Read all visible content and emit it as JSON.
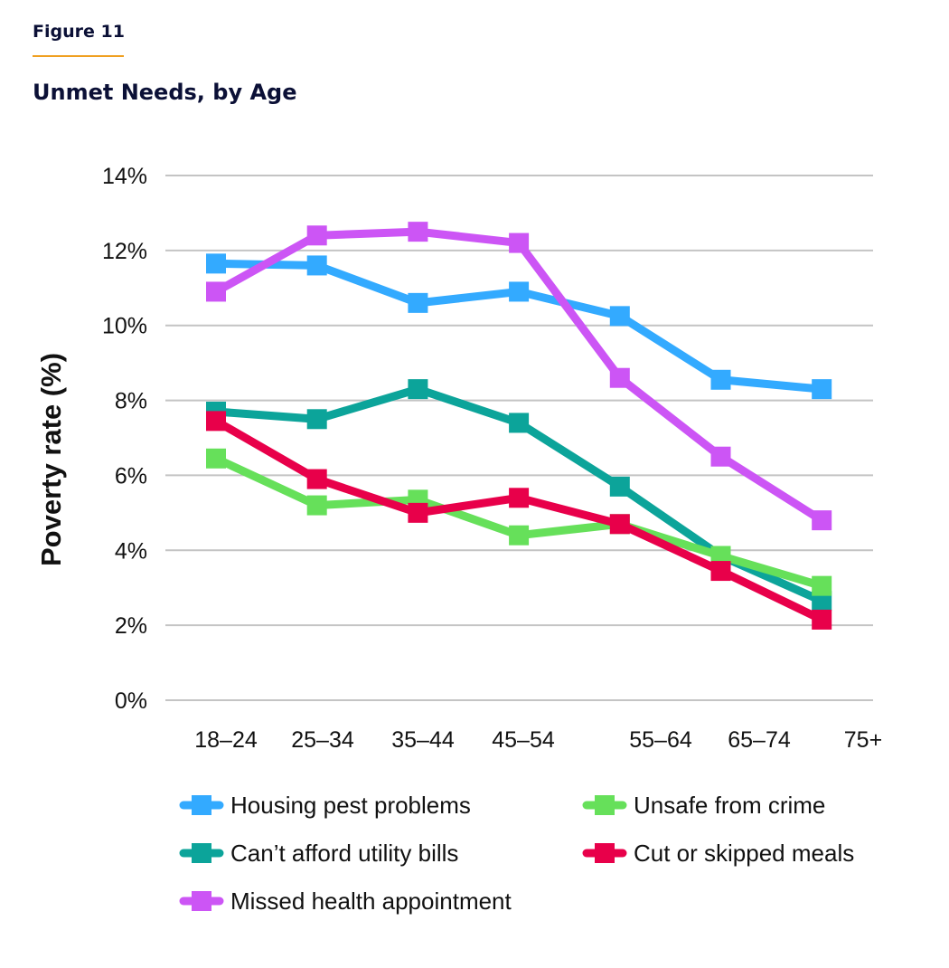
{
  "header": {
    "figure_label": "Figure 11",
    "title": "Unmet Needs, by Age",
    "rule_color": "#f0a020"
  },
  "chart_data": {
    "type": "line",
    "title": "Unmet Needs, by Age",
    "xlabel": "",
    "ylabel": "Poverty rate (%)",
    "categories": [
      "18–24",
      "25–34",
      "35–44",
      "45–54",
      "55–64",
      "65–74",
      "75+"
    ],
    "yticks": [
      "0%",
      "2%",
      "4%",
      "6%",
      "8%",
      "10%",
      "12%",
      "14%"
    ],
    "ytick_values": [
      0,
      2,
      4,
      6,
      8,
      10,
      12,
      14
    ],
    "ylim": [
      0,
      14
    ],
    "grid": true,
    "legend_position": "bottom",
    "marker": "square",
    "series": [
      {
        "name": "Housing pest problems",
        "color": "#33aaff",
        "values": [
          11.65,
          11.6,
          10.6,
          10.9,
          10.25,
          8.55,
          8.3
        ]
      },
      {
        "name": "Unsafe from crime",
        "color": "#66e05a",
        "values": [
          6.45,
          5.2,
          5.35,
          4.4,
          4.7,
          3.85,
          3.05
        ]
      },
      {
        "name": "Can’t afford utility bills",
        "color": "#0ca49a",
        "values": [
          7.7,
          7.5,
          8.3,
          7.4,
          5.7,
          3.85,
          2.65
        ]
      },
      {
        "name": "Cut or skipped meals",
        "color": "#e8004a",
        "values": [
          7.45,
          5.9,
          5.0,
          5.4,
          4.7,
          3.45,
          2.15
        ]
      },
      {
        "name": "Missed health appointment",
        "color": "#cc55f5",
        "values": [
          10.9,
          12.4,
          12.5,
          12.2,
          8.6,
          6.5,
          4.8
        ]
      }
    ],
    "draw_order": [
      2,
      0,
      4,
      1,
      3
    ]
  }
}
